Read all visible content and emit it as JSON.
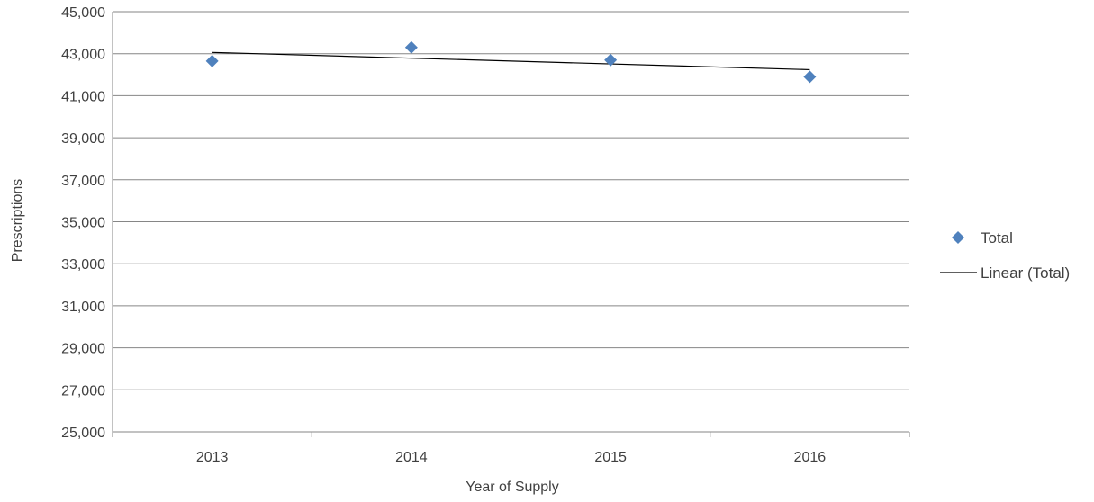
{
  "chart_data": {
    "type": "scatter",
    "categories": [
      "2013",
      "2014",
      "2015",
      "2016"
    ],
    "series": [
      {
        "name": "Total",
        "values": [
          42650,
          43300,
          42700,
          41900
        ],
        "marker": "diamond",
        "color": "#4F81BD"
      }
    ],
    "trendline": {
      "name": "Linear (Total)",
      "type": "linear",
      "start": 43060,
      "end": 42240,
      "color": "#000000"
    },
    "xlabel": "Year of Supply",
    "ylabel": "Prescriptions",
    "ylim": [
      25000,
      45000
    ],
    "yticks": [
      "25,000",
      "27,000",
      "29,000",
      "31,000",
      "33,000",
      "35,000",
      "37,000",
      "39,000",
      "41,000",
      "43,000",
      "45,000"
    ],
    "grid": true,
    "legend_position": "right"
  }
}
